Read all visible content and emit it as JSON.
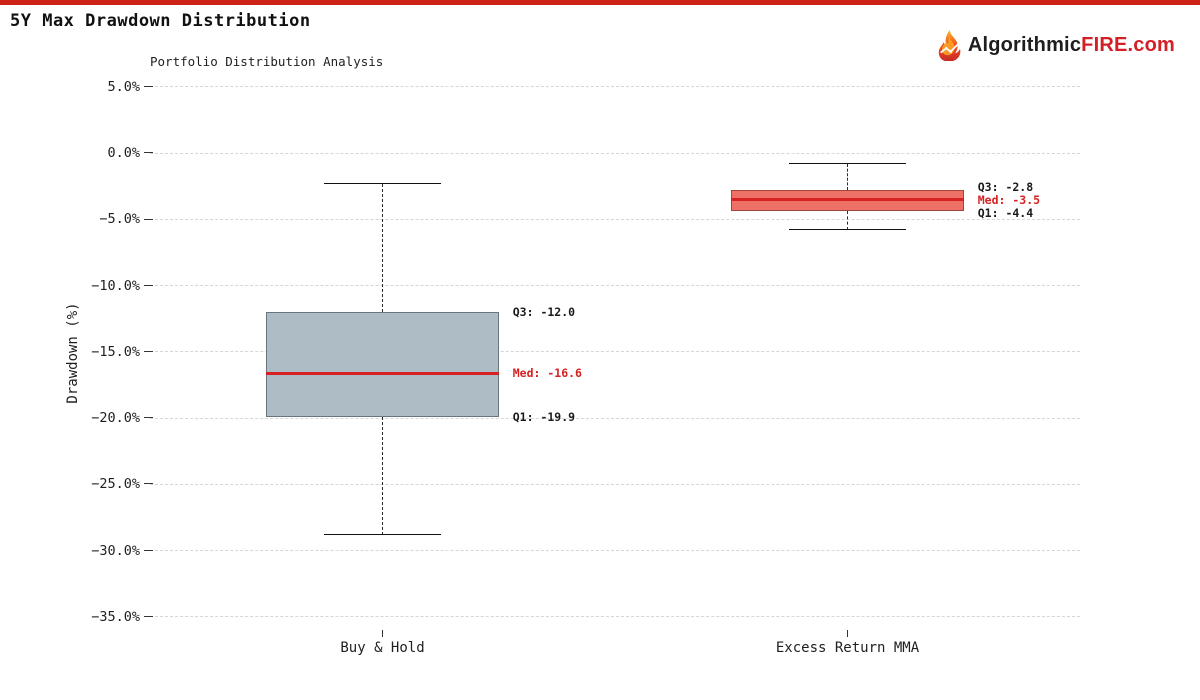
{
  "page": {
    "title": "5Y Max Drawdown Distribution",
    "top_bar_color": "#cc2218",
    "background": "#ffffff"
  },
  "brand": {
    "prefix": "Algorithmic",
    "accent": "FIRE",
    "suffix": ".com",
    "accent_color": "#d32027",
    "icon": "flame-icon"
  },
  "chart_data": {
    "type": "box",
    "title": "Portfolio Distribution Analysis",
    "ylabel": "Drawdown (%)",
    "ylim": [
      -36.0,
      5.9
    ],
    "yticks": [
      5.0,
      0.0,
      -5.0,
      -10.0,
      -15.0,
      -20.0,
      -25.0,
      -30.0,
      -35.0
    ],
    "ytick_suffix": "%",
    "grid": "dashed-horizontal",
    "grid_color": "#d6d6d6",
    "whisker_color": "#2a2a2a",
    "categories": [
      "Buy & Hold",
      "Excess Return MMA"
    ],
    "series": [
      {
        "name": "Buy & Hold",
        "whisker_low": -28.8,
        "q1": -19.9,
        "median": -16.6,
        "q3": -12.0,
        "whisker_high": -2.3,
        "box_fill": "#aebcc6",
        "box_border": "#66767f",
        "median_color": "#d62021",
        "annotations": [
          {
            "key": "q3",
            "text": "Q3: -12.0",
            "color": "#1a1a1a"
          },
          {
            "key": "med",
            "text": "Med: -16.6",
            "color": "#d62021"
          },
          {
            "key": "q1",
            "text": "Q1: -19.9",
            "color": "#1a1a1a"
          }
        ]
      },
      {
        "name": "Excess Return MMA",
        "whisker_low": -5.8,
        "q1": -4.4,
        "median": -3.5,
        "q3": -2.8,
        "whisker_high": -0.8,
        "box_fill": "#ed7166",
        "box_border": "#a4453d",
        "median_color": "#d62021",
        "annotations": [
          {
            "key": "q3",
            "text": "Q3: -2.8",
            "color": "#1a1a1a"
          },
          {
            "key": "med",
            "text": "Med: -3.5",
            "color": "#d62021"
          },
          {
            "key": "q1",
            "text": "Q1: -4.4",
            "color": "#1a1a1a"
          }
        ]
      }
    ]
  }
}
